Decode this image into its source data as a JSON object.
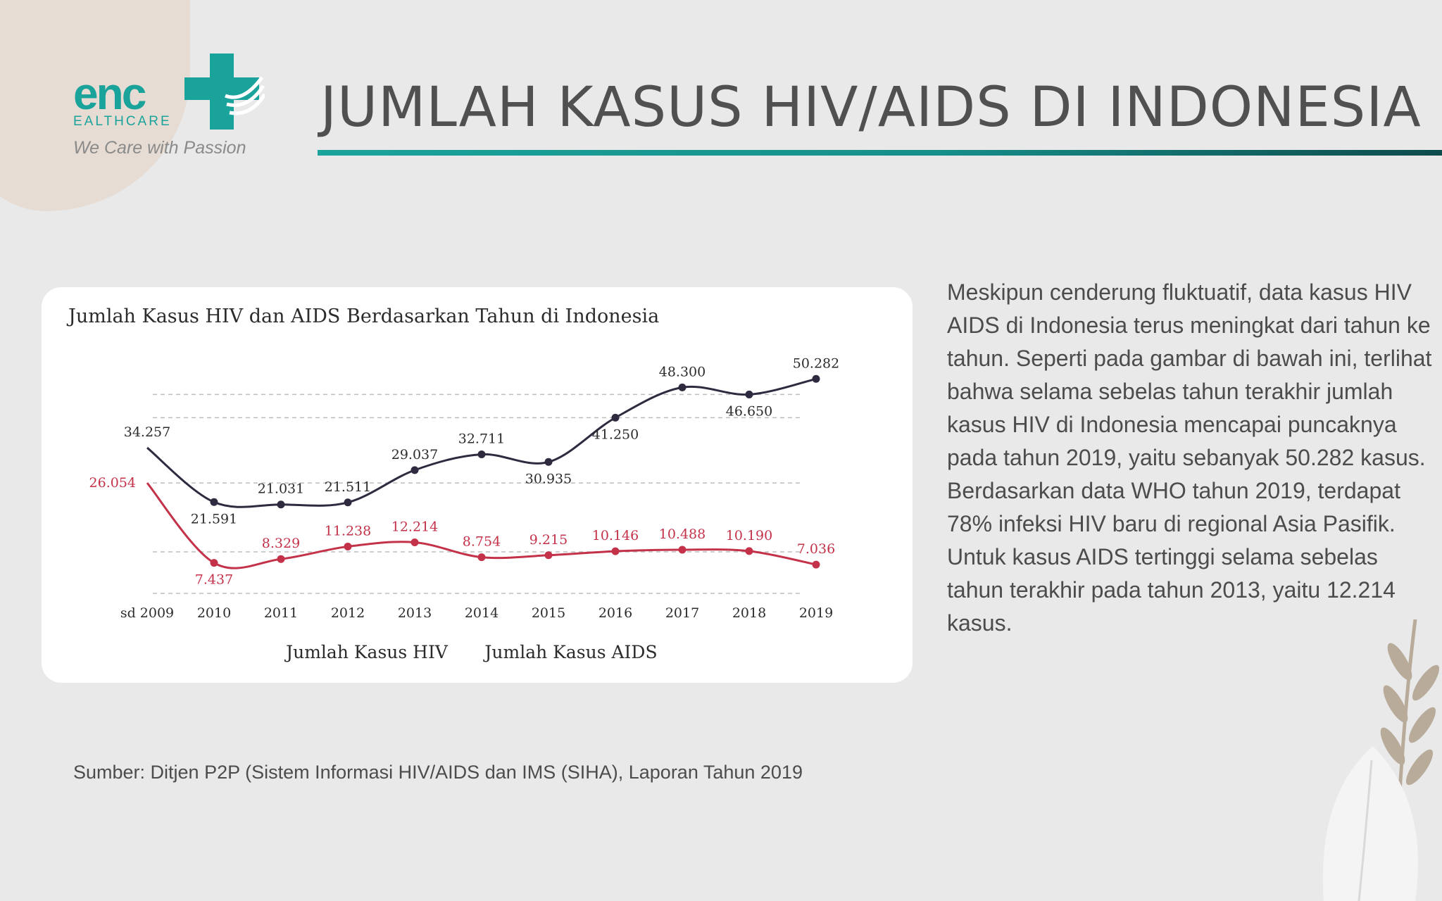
{
  "page": {
    "title": "JUMLAH KASUS HIV/AIDS DI INDONESIA",
    "logo_word": "enc",
    "logo_sub": "EALTHCARE",
    "logo_tagline": "We Care with Passion",
    "body_text": "Meskipun cenderung fluktuatif, data kasus HIV AIDS di Indonesia terus meningkat dari tahun ke tahun. Seperti pada gambar di bawah ini, terlihat bahwa selama sebelas tahun terakhir jumlah kasus HIV di Indonesia mencapai puncaknya pada tahun 2019, yaitu sebanyak 50.282 kasus. Berdasarkan data WHO tahun 2019, terdapat 78% infeksi HIV baru di regional Asia Pasifik. Untuk kasus AIDS tertinggi selama sebelas tahun terakhir pada tahun 2013, yaitu 12.214 kasus.",
    "source": "Sumber: Ditjen P2P (Sistem Informasi HIV/AIDS dan IMS (SIHA), Laporan Tahun 2019"
  },
  "colors": {
    "hiv": "#2f2a40",
    "aids": "#c4324a",
    "accent": "#1aa39b"
  },
  "chart_data": {
    "type": "line",
    "title": "Jumlah Kasus HIV dan AIDS Berdasarkan Tahun di Indonesia",
    "categories": [
      "sd 2009",
      "2010",
      "2011",
      "2012",
      "2013",
      "2014",
      "2015",
      "2016",
      "2017",
      "2018",
      "2019"
    ],
    "series": [
      {
        "name": "Jumlah Kasus HIV",
        "values": [
          34257,
          21591,
          21031,
          21511,
          29037,
          32711,
          30935,
          41250,
          48300,
          46650,
          50282
        ],
        "labels": [
          "34.257",
          "21.591",
          "21.031",
          "21.511",
          "29.037",
          "32.711",
          "30.935",
          "41.250",
          "48.300",
          "46.650",
          "50.282"
        ]
      },
      {
        "name": "Jumlah Kasus AIDS",
        "values": [
          26054,
          7437,
          8329,
          11238,
          12214,
          8754,
          9215,
          10146,
          10488,
          10190,
          7036
        ],
        "labels": [
          "26.054",
          "7.437",
          "8.329",
          "11.238",
          "12.214",
          "8.754",
          "9.215",
          "10.146",
          "10.488",
          "10.190",
          "7.036"
        ]
      }
    ],
    "grid": "horizontal dashed",
    "legend": "bottom"
  }
}
